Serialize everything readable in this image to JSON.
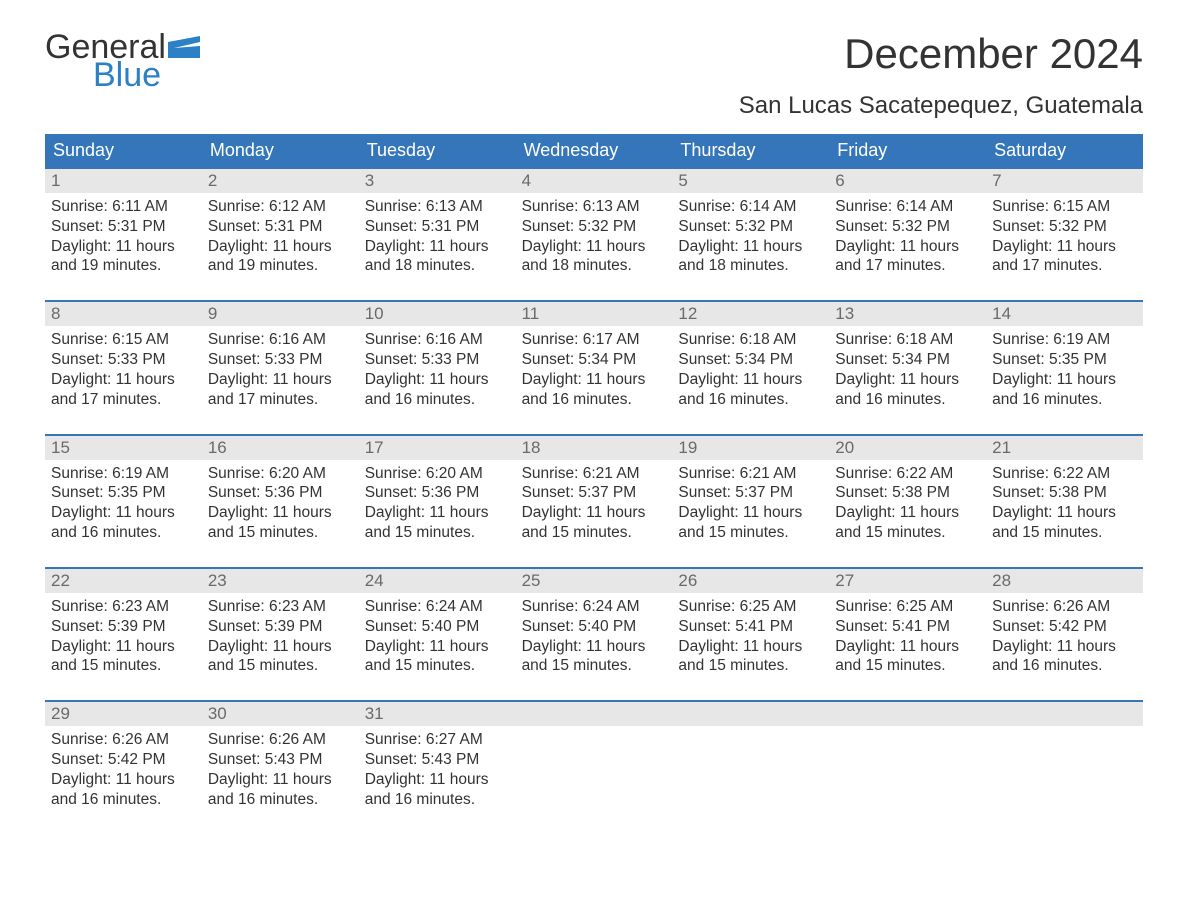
{
  "brand": {
    "word1": "General",
    "word2": "Blue",
    "accent_color": "#2c80c5"
  },
  "title": "December 2024",
  "location": "San Lucas Sacatepequez, Guatemala",
  "colors": {
    "header_bg": "#3476b9",
    "header_text": "#ffffff",
    "daynum_bg": "#e7e7e7",
    "daynum_text": "#6a6a6a",
    "body_text": "#333333",
    "page_bg": "#ffffff",
    "week_top_border": "#3476b9"
  },
  "typography": {
    "title_fontsize": 42,
    "location_fontsize": 24,
    "dow_fontsize": 18,
    "daynum_fontsize": 17,
    "body_fontsize": 15.5,
    "font_family": "Arial"
  },
  "days_of_week": [
    "Sunday",
    "Monday",
    "Tuesday",
    "Wednesday",
    "Thursday",
    "Friday",
    "Saturday"
  ],
  "weeks": [
    [
      {
        "n": "1",
        "sunrise": "Sunrise: 6:11 AM",
        "sunset": "Sunset: 5:31 PM",
        "d1": "Daylight: 11 hours",
        "d2": "and 19 minutes."
      },
      {
        "n": "2",
        "sunrise": "Sunrise: 6:12 AM",
        "sunset": "Sunset: 5:31 PM",
        "d1": "Daylight: 11 hours",
        "d2": "and 19 minutes."
      },
      {
        "n": "3",
        "sunrise": "Sunrise: 6:13 AM",
        "sunset": "Sunset: 5:31 PM",
        "d1": "Daylight: 11 hours",
        "d2": "and 18 minutes."
      },
      {
        "n": "4",
        "sunrise": "Sunrise: 6:13 AM",
        "sunset": "Sunset: 5:32 PM",
        "d1": "Daylight: 11 hours",
        "d2": "and 18 minutes."
      },
      {
        "n": "5",
        "sunrise": "Sunrise: 6:14 AM",
        "sunset": "Sunset: 5:32 PM",
        "d1": "Daylight: 11 hours",
        "d2": "and 18 minutes."
      },
      {
        "n": "6",
        "sunrise": "Sunrise: 6:14 AM",
        "sunset": "Sunset: 5:32 PM",
        "d1": "Daylight: 11 hours",
        "d2": "and 17 minutes."
      },
      {
        "n": "7",
        "sunrise": "Sunrise: 6:15 AM",
        "sunset": "Sunset: 5:32 PM",
        "d1": "Daylight: 11 hours",
        "d2": "and 17 minutes."
      }
    ],
    [
      {
        "n": "8",
        "sunrise": "Sunrise: 6:15 AM",
        "sunset": "Sunset: 5:33 PM",
        "d1": "Daylight: 11 hours",
        "d2": "and 17 minutes."
      },
      {
        "n": "9",
        "sunrise": "Sunrise: 6:16 AM",
        "sunset": "Sunset: 5:33 PM",
        "d1": "Daylight: 11 hours",
        "d2": "and 17 minutes."
      },
      {
        "n": "10",
        "sunrise": "Sunrise: 6:16 AM",
        "sunset": "Sunset: 5:33 PM",
        "d1": "Daylight: 11 hours",
        "d2": "and 16 minutes."
      },
      {
        "n": "11",
        "sunrise": "Sunrise: 6:17 AM",
        "sunset": "Sunset: 5:34 PM",
        "d1": "Daylight: 11 hours",
        "d2": "and 16 minutes."
      },
      {
        "n": "12",
        "sunrise": "Sunrise: 6:18 AM",
        "sunset": "Sunset: 5:34 PM",
        "d1": "Daylight: 11 hours",
        "d2": "and 16 minutes."
      },
      {
        "n": "13",
        "sunrise": "Sunrise: 6:18 AM",
        "sunset": "Sunset: 5:34 PM",
        "d1": "Daylight: 11 hours",
        "d2": "and 16 minutes."
      },
      {
        "n": "14",
        "sunrise": "Sunrise: 6:19 AM",
        "sunset": "Sunset: 5:35 PM",
        "d1": "Daylight: 11 hours",
        "d2": "and 16 minutes."
      }
    ],
    [
      {
        "n": "15",
        "sunrise": "Sunrise: 6:19 AM",
        "sunset": "Sunset: 5:35 PM",
        "d1": "Daylight: 11 hours",
        "d2": "and 16 minutes."
      },
      {
        "n": "16",
        "sunrise": "Sunrise: 6:20 AM",
        "sunset": "Sunset: 5:36 PM",
        "d1": "Daylight: 11 hours",
        "d2": "and 15 minutes."
      },
      {
        "n": "17",
        "sunrise": "Sunrise: 6:20 AM",
        "sunset": "Sunset: 5:36 PM",
        "d1": "Daylight: 11 hours",
        "d2": "and 15 minutes."
      },
      {
        "n": "18",
        "sunrise": "Sunrise: 6:21 AM",
        "sunset": "Sunset: 5:37 PM",
        "d1": "Daylight: 11 hours",
        "d2": "and 15 minutes."
      },
      {
        "n": "19",
        "sunrise": "Sunrise: 6:21 AM",
        "sunset": "Sunset: 5:37 PM",
        "d1": "Daylight: 11 hours",
        "d2": "and 15 minutes."
      },
      {
        "n": "20",
        "sunrise": "Sunrise: 6:22 AM",
        "sunset": "Sunset: 5:38 PM",
        "d1": "Daylight: 11 hours",
        "d2": "and 15 minutes."
      },
      {
        "n": "21",
        "sunrise": "Sunrise: 6:22 AM",
        "sunset": "Sunset: 5:38 PM",
        "d1": "Daylight: 11 hours",
        "d2": "and 15 minutes."
      }
    ],
    [
      {
        "n": "22",
        "sunrise": "Sunrise: 6:23 AM",
        "sunset": "Sunset: 5:39 PM",
        "d1": "Daylight: 11 hours",
        "d2": "and 15 minutes."
      },
      {
        "n": "23",
        "sunrise": "Sunrise: 6:23 AM",
        "sunset": "Sunset: 5:39 PM",
        "d1": "Daylight: 11 hours",
        "d2": "and 15 minutes."
      },
      {
        "n": "24",
        "sunrise": "Sunrise: 6:24 AM",
        "sunset": "Sunset: 5:40 PM",
        "d1": "Daylight: 11 hours",
        "d2": "and 15 minutes."
      },
      {
        "n": "25",
        "sunrise": "Sunrise: 6:24 AM",
        "sunset": "Sunset: 5:40 PM",
        "d1": "Daylight: 11 hours",
        "d2": "and 15 minutes."
      },
      {
        "n": "26",
        "sunrise": "Sunrise: 6:25 AM",
        "sunset": "Sunset: 5:41 PM",
        "d1": "Daylight: 11 hours",
        "d2": "and 15 minutes."
      },
      {
        "n": "27",
        "sunrise": "Sunrise: 6:25 AM",
        "sunset": "Sunset: 5:41 PM",
        "d1": "Daylight: 11 hours",
        "d2": "and 15 minutes."
      },
      {
        "n": "28",
        "sunrise": "Sunrise: 6:26 AM",
        "sunset": "Sunset: 5:42 PM",
        "d1": "Daylight: 11 hours",
        "d2": "and 16 minutes."
      }
    ],
    [
      {
        "n": "29",
        "sunrise": "Sunrise: 6:26 AM",
        "sunset": "Sunset: 5:42 PM",
        "d1": "Daylight: 11 hours",
        "d2": "and 16 minutes."
      },
      {
        "n": "30",
        "sunrise": "Sunrise: 6:26 AM",
        "sunset": "Sunset: 5:43 PM",
        "d1": "Daylight: 11 hours",
        "d2": "and 16 minutes."
      },
      {
        "n": "31",
        "sunrise": "Sunrise: 6:27 AM",
        "sunset": "Sunset: 5:43 PM",
        "d1": "Daylight: 11 hours",
        "d2": "and 16 minutes."
      },
      {
        "n": "",
        "sunrise": "",
        "sunset": "",
        "d1": "",
        "d2": ""
      },
      {
        "n": "",
        "sunrise": "",
        "sunset": "",
        "d1": "",
        "d2": ""
      },
      {
        "n": "",
        "sunrise": "",
        "sunset": "",
        "d1": "",
        "d2": ""
      },
      {
        "n": "",
        "sunrise": "",
        "sunset": "",
        "d1": "",
        "d2": ""
      }
    ]
  ]
}
